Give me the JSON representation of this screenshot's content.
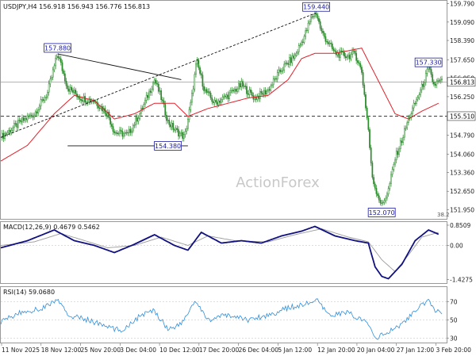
{
  "header": {
    "symbol_line": "USDJPY,H4  156.918 156.943 156.776 156.813"
  },
  "watermark": "ActionForex",
  "colors": {
    "candle": "#2a8a2a",
    "ma": "#e0202a",
    "trend": "#111111",
    "label_border": "#1a1aa0",
    "label_text": "#1a1aa0",
    "macd_line": "#101080",
    "macd_signal": "#9a9a9a",
    "rsi_line": "#2f8fdc",
    "level_bg": "#ffffff"
  },
  "chart_data": [
    {
      "type": "candlestick",
      "title": "USDJPY,H4",
      "ylim": [
        151.6,
        159.9
      ],
      "y_ticks": [
        "159.790",
        "159.090",
        "158.390",
        "157.650",
        "156.950",
        "156.250",
        "155.510",
        "154.790",
        "154.060",
        "153.360",
        "152.650",
        "151.950"
      ],
      "x_ticks": [
        "11 Nov 2025",
        "18 Nov 12:00",
        "25 Nov 20:00",
        "3 Dec 04:00",
        "10 Dec 12:00",
        "17 Dec 20:00",
        "26 Dec 04:00",
        "5 Jan 12:00",
        "12 Jan 20:00",
        "20 Jan 04:00",
        "27 Jan 12:00",
        "3 Feb 20:00"
      ],
      "close_path": [
        [
          0,
          154.7
        ],
        [
          3,
          155.3
        ],
        [
          5,
          155.6
        ],
        [
          7,
          156.4
        ],
        [
          8.5,
          157.9
        ],
        [
          10,
          156.6
        ],
        [
          12,
          156.2
        ],
        [
          14,
          156.1
        ],
        [
          16,
          155.6
        ],
        [
          17,
          154.9
        ],
        [
          19,
          154.8
        ],
        [
          21,
          155.7
        ],
        [
          23,
          156.9
        ],
        [
          24,
          156.2
        ],
        [
          25,
          155.3
        ],
        [
          26,
          155.0
        ],
        [
          26.5,
          154.9
        ],
        [
          27.5,
          154.7
        ],
        [
          28.5,
          156.1
        ],
        [
          29.3,
          157.6
        ],
        [
          30.5,
          156.5
        ],
        [
          32,
          156.0
        ],
        [
          34,
          156.3
        ],
        [
          36,
          156.7
        ],
        [
          38,
          156.2
        ],
        [
          40,
          156.5
        ],
        [
          42,
          157.3
        ],
        [
          44,
          157.8
        ],
        [
          45.5,
          158.6
        ],
        [
          46.5,
          159.3
        ],
        [
          47.2,
          159.44
        ],
        [
          48,
          158.7
        ],
        [
          50,
          157.9
        ],
        [
          52,
          157.8
        ],
        [
          53,
          157.9
        ],
        [
          54,
          157.2
        ],
        [
          55,
          155.0
        ],
        [
          55.5,
          153.3
        ],
        [
          56,
          152.8
        ],
        [
          57,
          152.1
        ],
        [
          58,
          152.7
        ],
        [
          59,
          153.9
        ],
        [
          60,
          154.6
        ],
        [
          61,
          155.4
        ],
        [
          62,
          156.0
        ],
        [
          63,
          156.6
        ],
        [
          64,
          157.33
        ],
        [
          64.8,
          156.7
        ],
        [
          65.5,
          156.813
        ]
      ],
      "ma_path": [
        [
          0,
          153.8
        ],
        [
          4,
          154.4
        ],
        [
          8,
          155.6
        ],
        [
          11,
          156.3
        ],
        [
          14,
          156.1
        ],
        [
          17,
          155.4
        ],
        [
          20,
          155.6
        ],
        [
          23,
          156.0
        ],
        [
          26,
          156.0
        ],
        [
          28,
          155.5
        ],
        [
          31,
          155.8
        ],
        [
          34,
          156.0
        ],
        [
          37,
          156.2
        ],
        [
          40,
          156.3
        ],
        [
          43,
          156.9
        ],
        [
          45,
          157.7
        ],
        [
          47,
          157.9
        ],
        [
          50,
          157.9
        ],
        [
          54,
          158.1
        ],
        [
          57,
          156.6
        ],
        [
          59,
          155.6
        ],
        [
          61,
          155.4
        ],
        [
          63,
          155.7
        ],
        [
          65.5,
          156.0
        ]
      ],
      "price_labels": [
        {
          "text": "157.880",
          "x": 8.5,
          "y": 157.88
        },
        {
          "text": "154.380",
          "x": 25,
          "y": 154.38
        },
        {
          "text": "159.440",
          "x": 47.2,
          "y": 159.44
        },
        {
          "text": "157.330",
          "x": 64,
          "y": 157.33
        },
        {
          "text": "152.070",
          "x": 57,
          "y": 152.07
        }
      ],
      "levels": [
        {
          "text": "155.510",
          "y": 155.51,
          "style": "dashed"
        },
        {
          "text": "156.813",
          "y": 156.813,
          "style": "solid"
        }
      ],
      "trendlines": [
        {
          "from": [
            8.5,
            157.88
          ],
          "to": [
            27,
            156.9
          ],
          "style": "solid"
        },
        {
          "from": [
            0,
            154.7
          ],
          "to": [
            47.2,
            159.44
          ],
          "style": "dashed"
        },
        {
          "from": [
            10,
            154.38
          ],
          "to": [
            28,
            154.38
          ],
          "style": "solid"
        }
      ],
      "corner_note": "38.2"
    },
    {
      "type": "line",
      "title": "MACD(12,26,9) 0.4679 0.5462",
      "ylim": [
        -1.55,
        0.95
      ],
      "y_ticks": [
        "0.8509",
        "0.00",
        "-1.4275"
      ],
      "series": [
        {
          "name": "macd",
          "points": [
            [
              0,
              -0.1
            ],
            [
              4,
              0.2
            ],
            [
              8,
              0.65
            ],
            [
              11,
              0.2
            ],
            [
              14,
              0.0
            ],
            [
              17,
              -0.3
            ],
            [
              20,
              0.05
            ],
            [
              23,
              0.45
            ],
            [
              26,
              0.0
            ],
            [
              28,
              -0.2
            ],
            [
              30,
              0.55
            ],
            [
              33,
              0.1
            ],
            [
              36,
              0.2
            ],
            [
              39,
              0.1
            ],
            [
              42,
              0.4
            ],
            [
              45,
              0.6
            ],
            [
              47,
              0.8
            ],
            [
              50,
              0.4
            ],
            [
              53,
              0.2
            ],
            [
              55,
              0.1
            ],
            [
              56,
              -0.9
            ],
            [
              57,
              -1.3
            ],
            [
              58,
              -1.4
            ],
            [
              60,
              -0.8
            ],
            [
              62,
              0.2
            ],
            [
              64,
              0.65
            ],
            [
              65.5,
              0.47
            ]
          ]
        },
        {
          "name": "signal",
          "points": [
            [
              0,
              0.0
            ],
            [
              5,
              0.15
            ],
            [
              9,
              0.5
            ],
            [
              12,
              0.25
            ],
            [
              16,
              -0.1
            ],
            [
              20,
              0.0
            ],
            [
              24,
              0.35
            ],
            [
              28,
              0.0
            ],
            [
              31,
              0.4
            ],
            [
              35,
              0.2
            ],
            [
              40,
              0.15
            ],
            [
              44,
              0.45
            ],
            [
              48,
              0.7
            ],
            [
              52,
              0.35
            ],
            [
              55,
              0.15
            ],
            [
              57,
              -0.6
            ],
            [
              59,
              -1.1
            ],
            [
              61,
              -0.4
            ],
            [
              63,
              0.35
            ],
            [
              65.5,
              0.55
            ]
          ]
        }
      ]
    },
    {
      "type": "line",
      "title": "RSI(14) 59.0680",
      "ylim": [
        25,
        85
      ],
      "y_ticks": [
        "70",
        "50",
        "30"
      ],
      "series": [
        {
          "name": "rsi",
          "points": [
            [
              0,
              48
            ],
            [
              3,
              58
            ],
            [
              6,
              62
            ],
            [
              8.5,
              72
            ],
            [
              10,
              55
            ],
            [
              13,
              50
            ],
            [
              16,
              42
            ],
            [
              18,
              38
            ],
            [
              21,
              55
            ],
            [
              23,
              60
            ],
            [
              25,
              40
            ],
            [
              27,
              45
            ],
            [
              29,
              70
            ],
            [
              31,
              50
            ],
            [
              34,
              55
            ],
            [
              37,
              50
            ],
            [
              40,
              55
            ],
            [
              43,
              63
            ],
            [
              46,
              68
            ],
            [
              47.2,
              72
            ],
            [
              49,
              55
            ],
            [
              52,
              58
            ],
            [
              55,
              45
            ],
            [
              56,
              30
            ],
            [
              57,
              33
            ],
            [
              59,
              40
            ],
            [
              61,
              52
            ],
            [
              63,
              66
            ],
            [
              64,
              70
            ],
            [
              65,
              60
            ],
            [
              65.5,
              59
            ]
          ]
        }
      ]
    }
  ]
}
